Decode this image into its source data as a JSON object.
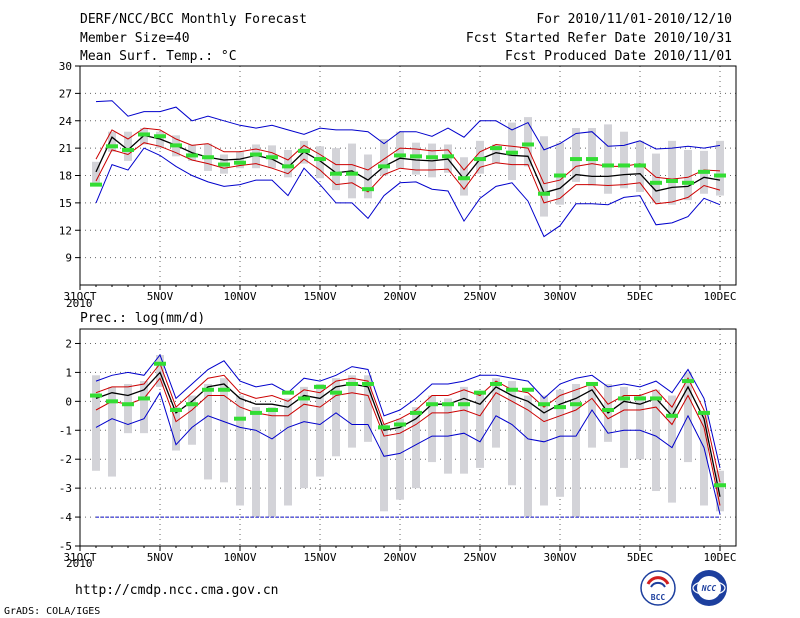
{
  "header": {
    "left1": "DERF/NCC/BCC Monthly Forecast",
    "left2": "Member Size=40",
    "right1": "For 2010/11/01-2010/12/10",
    "right2": "Fcst Started Refer Date 2010/10/31",
    "right3": "Fcst Produced Date 2010/11/01"
  },
  "footer": {
    "url": "http://cmdp.ncc.cma.gov.cn",
    "credit": "GrADS: COLA/IGES"
  },
  "logos": {
    "bcc_text": "BCC",
    "ncc_text": "NCC"
  },
  "colors": {
    "box": "#d3d3d8",
    "mean": "#000000",
    "envelope": "#0000cc",
    "sigma": "#cc0000",
    "obs": "#33dd33"
  },
  "chart_data": [
    {
      "type": "line",
      "title": "Mean Surf. Temp.: °C",
      "x_first_tick": "31OCT",
      "x_year": "2010",
      "xticks": [
        "31OCT",
        "5NOV",
        "10NOV",
        "15NOV",
        "20NOV",
        "25NOV",
        "30NOV",
        "5DEC",
        "10DEC"
      ],
      "ylim": [
        6,
        30
      ],
      "yticks": [
        9,
        12,
        15,
        18,
        21,
        24,
        27,
        30
      ],
      "ytick_labels": [
        "9",
        "12",
        "15",
        "18",
        "21",
        "24",
        "27",
        "30"
      ],
      "x": [
        1,
        2,
        3,
        4,
        5,
        6,
        7,
        8,
        9,
        10,
        11,
        12,
        13,
        14,
        15,
        16,
        17,
        18,
        19,
        20,
        21,
        22,
        23,
        24,
        25,
        26,
        27,
        28,
        29,
        30,
        31,
        32,
        33,
        34,
        35,
        36,
        37,
        38,
        39,
        40
      ],
      "series": [
        {
          "name": "max",
          "values": [
            26.1,
            26.2,
            24.5,
            25.0,
            25.0,
            25.5,
            24.0,
            24.5,
            24.0,
            23.5,
            23.2,
            23.5,
            23.0,
            22.5,
            23.2,
            23.0,
            23.0,
            22.8,
            21.5,
            22.8,
            22.8,
            22.3,
            23.2,
            22.2,
            24.0,
            24.0,
            23.0,
            23.8,
            20.8,
            21.5,
            22.6,
            22.8,
            21.2,
            21.3,
            21.8,
            20.9,
            21.0,
            21.2,
            21.0,
            21.3
          ]
        },
        {
          "name": "plus_sigma",
          "values": [
            19.8,
            23.0,
            22.0,
            23.2,
            23.0,
            22.0,
            21.3,
            21.5,
            20.6,
            20.6,
            20.9,
            20.5,
            19.7,
            21.3,
            20.3,
            19.2,
            19.2,
            18.6,
            19.8,
            21.0,
            20.9,
            20.7,
            20.8,
            18.6,
            20.6,
            21.4,
            21.2,
            21.0,
            17.1,
            17.5,
            19.0,
            19.3,
            19.0,
            19.0,
            19.3,
            17.8,
            17.6,
            17.8,
            18.6,
            18.5
          ]
        },
        {
          "name": "mean",
          "values": [
            18.4,
            22.2,
            20.8,
            22.4,
            22.0,
            21.3,
            20.5,
            20.0,
            19.7,
            19.8,
            20.2,
            19.8,
            18.9,
            20.6,
            19.6,
            18.3,
            18.5,
            17.5,
            19.0,
            19.9,
            19.7,
            19.6,
            19.8,
            17.6,
            19.8,
            20.5,
            20.2,
            20.1,
            16.1,
            16.6,
            18.1,
            17.9,
            17.9,
            18.1,
            18.2,
            16.3,
            16.7,
            16.8,
            17.8,
            17.5
          ]
        },
        {
          "name": "minus_sigma",
          "values": [
            17.4,
            20.8,
            20.3,
            21.6,
            21.2,
            20.5,
            19.7,
            19.3,
            18.8,
            19.1,
            19.3,
            18.8,
            18.2,
            19.8,
            18.6,
            17.0,
            17.2,
            16.2,
            18.1,
            18.8,
            18.6,
            18.6,
            18.7,
            16.5,
            18.9,
            19.4,
            19.2,
            19.2,
            15.0,
            15.5,
            17.0,
            17.0,
            16.9,
            17.0,
            17.2,
            14.9,
            15.1,
            15.6,
            16.9,
            16.4
          ]
        },
        {
          "name": "min",
          "values": [
            15.0,
            19.2,
            18.6,
            21.0,
            20.2,
            19.0,
            18.0,
            17.3,
            16.8,
            17.0,
            17.5,
            17.5,
            15.8,
            18.8,
            17.0,
            15.0,
            15.0,
            13.3,
            15.8,
            17.2,
            17.3,
            16.5,
            16.3,
            13.0,
            15.5,
            16.8,
            17.2,
            15.2,
            11.3,
            12.5,
            14.9,
            14.9,
            14.8,
            15.6,
            15.8,
            12.6,
            12.8,
            13.5,
            15.5,
            14.8
          ]
        },
        {
          "name": "obs",
          "values": [
            17.0,
            21.2,
            20.8,
            22.5,
            22.3,
            21.3,
            20.2,
            20.0,
            19.2,
            19.4,
            20.3,
            20.0,
            19.0,
            20.7,
            19.8,
            18.2,
            18.2,
            16.5,
            19.0,
            20.2,
            20.1,
            20.0,
            20.1,
            17.7,
            19.8,
            21.0,
            20.5,
            21.4,
            16.0,
            18.0,
            19.8,
            19.8,
            19.1,
            19.1,
            19.1,
            17.2,
            17.4,
            17.2,
            18.4,
            18.0
          ]
        }
      ],
      "boxes": [
        [
          17.2,
          19.5
        ],
        [
          20.6,
          22.8
        ],
        [
          19.6,
          22.8
        ],
        [
          21.4,
          23.2
        ],
        [
          21.0,
          22.8
        ],
        [
          20.1,
          22.4
        ],
        [
          19.6,
          21.4
        ],
        [
          18.5,
          21.5
        ],
        [
          18.2,
          20.3
        ],
        [
          18.8,
          20.6
        ],
        [
          18.8,
          21.4
        ],
        [
          18.8,
          21.3
        ],
        [
          17.8,
          20.8
        ],
        [
          19.3,
          21.8
        ],
        [
          17.7,
          21.2
        ],
        [
          16.4,
          21.0
        ],
        [
          15.5,
          21.5
        ],
        [
          15.5,
          20.3
        ],
        [
          18.0,
          22.0
        ],
        [
          18.8,
          22.8
        ],
        [
          18.1,
          21.6
        ],
        [
          17.8,
          21.5
        ],
        [
          18.3,
          21.4
        ],
        [
          15.8,
          20.0
        ],
        [
          18.2,
          21.8
        ],
        [
          19.3,
          21.4
        ],
        [
          17.5,
          23.8
        ],
        [
          19.0,
          24.4
        ],
        [
          13.5,
          22.3
        ],
        [
          14.8,
          21.6
        ],
        [
          17.3,
          23.2
        ],
        [
          16.9,
          23.2
        ],
        [
          16.0,
          23.6
        ],
        [
          16.6,
          22.8
        ],
        [
          16.2,
          21.8
        ],
        [
          15.0,
          20.4
        ],
        [
          14.8,
          21.8
        ],
        [
          15.3,
          20.8
        ],
        [
          16.0,
          20.7
        ],
        [
          15.8,
          21.8
        ]
      ]
    },
    {
      "type": "line",
      "title": "Prec.: log(mm/d)",
      "x_first_tick": "31OCT",
      "x_year": "2010",
      "xticks": [
        "31OCT",
        "5NOV",
        "10NOV",
        "15NOV",
        "20NOV",
        "25NOV",
        "30NOV",
        "5DEC",
        "10DEC"
      ],
      "ylim": [
        -5,
        2.5
      ],
      "yticks": [
        -5,
        -4,
        -3,
        -2,
        -1,
        0,
        1,
        2
      ],
      "ytick_labels": [
        "-5",
        "-4",
        "-3",
        "-2",
        "-1",
        "0",
        "1",
        "2"
      ],
      "x": [
        1,
        2,
        3,
        4,
        5,
        6,
        7,
        8,
        9,
        10,
        11,
        12,
        13,
        14,
        15,
        16,
        17,
        18,
        19,
        20,
        21,
        22,
        23,
        24,
        25,
        26,
        27,
        28,
        29,
        30,
        31,
        32,
        33,
        34,
        35,
        36,
        37,
        38,
        39,
        40
      ],
      "series": [
        {
          "name": "max",
          "values": [
            0.7,
            0.9,
            1.0,
            0.9,
            1.6,
            0.1,
            0.6,
            1.1,
            1.4,
            0.7,
            0.5,
            0.6,
            0.3,
            0.8,
            0.7,
            0.9,
            1.2,
            1.1,
            -0.5,
            -0.3,
            0.1,
            0.6,
            0.6,
            0.7,
            0.9,
            0.9,
            0.8,
            0.7,
            0.1,
            0.6,
            0.8,
            0.9,
            0.5,
            0.6,
            0.5,
            0.7,
            0.3,
            1.1,
            0.1,
            -2.3
          ]
        },
        {
          "name": "plus_sigma",
          "values": [
            0.3,
            0.5,
            0.5,
            0.6,
            1.3,
            -0.2,
            0.3,
            0.8,
            0.9,
            0.3,
            0.1,
            0.2,
            0.0,
            0.4,
            0.3,
            0.7,
            0.8,
            0.7,
            -0.8,
            -0.6,
            -0.3,
            0.2,
            0.2,
            0.4,
            0.2,
            0.7,
            0.4,
            0.3,
            -0.2,
            0.2,
            0.4,
            0.6,
            -0.1,
            0.2,
            0.2,
            0.4,
            -0.2,
            0.8,
            -0.3,
            -2.8
          ]
        },
        {
          "name": "mean",
          "values": [
            0.1,
            0.3,
            0.2,
            0.4,
            1.0,
            -0.4,
            0.0,
            0.5,
            0.6,
            0.1,
            -0.1,
            -0.1,
            -0.2,
            0.2,
            0.1,
            0.5,
            0.6,
            0.5,
            -1.0,
            -0.9,
            -0.6,
            -0.1,
            -0.1,
            0.1,
            -0.1,
            0.5,
            0.2,
            0.0,
            -0.4,
            -0.1,
            0.1,
            0.4,
            -0.4,
            0.0,
            -0.1,
            0.1,
            -0.5,
            0.5,
            -0.6,
            -3.3
          ]
        },
        {
          "name": "minus_sigma",
          "values": [
            -0.3,
            0.0,
            -0.1,
            0.1,
            0.8,
            -0.7,
            -0.3,
            0.2,
            0.2,
            -0.2,
            -0.4,
            -0.5,
            -0.5,
            -0.1,
            -0.2,
            0.2,
            0.3,
            0.2,
            -1.2,
            -1.1,
            -0.8,
            -0.4,
            -0.4,
            -0.3,
            -0.5,
            0.3,
            0.0,
            -0.3,
            -0.7,
            -0.5,
            -0.3,
            0.1,
            -0.6,
            -0.3,
            -0.3,
            -0.2,
            -0.8,
            0.2,
            -0.9,
            -3.6
          ]
        },
        {
          "name": "min",
          "values": [
            -0.9,
            -0.6,
            -0.8,
            -0.6,
            0.3,
            -1.5,
            -0.9,
            -0.5,
            -0.7,
            -0.9,
            -1.0,
            -1.3,
            -0.9,
            -0.7,
            -0.8,
            -0.4,
            -0.8,
            -0.8,
            -1.9,
            -1.8,
            -1.5,
            -1.2,
            -1.2,
            -1.1,
            -1.4,
            -0.5,
            -0.8,
            -1.3,
            -1.4,
            -1.2,
            -1.2,
            -0.3,
            -1.1,
            -1.0,
            -1.0,
            -1.2,
            -1.6,
            -0.5,
            -1.6,
            -3.9
          ]
        },
        {
          "name": "obs",
          "values": [
            0.2,
            0.0,
            -0.1,
            0.1,
            1.3,
            -0.3,
            -0.1,
            0.4,
            0.4,
            -0.6,
            -0.4,
            -0.3,
            0.3,
            0.1,
            0.5,
            0.3,
            0.6,
            0.6,
            -0.9,
            -0.8,
            -0.4,
            -0.1,
            -0.1,
            -0.1,
            0.3,
            0.6,
            0.4,
            0.4,
            -0.1,
            -0.2,
            -0.1,
            0.6,
            -0.3,
            0.1,
            0.1,
            0.1,
            -0.5,
            0.7,
            -0.4,
            -2.9
          ]
        }
      ],
      "boxes": [
        [
          -2.4,
          0.9
        ],
        [
          -2.6,
          0.5
        ],
        [
          -1.1,
          0.6
        ],
        [
          -1.1,
          0.7
        ],
        [
          0.5,
          1.6
        ],
        [
          -1.7,
          -0.2
        ],
        [
          -1.5,
          0.2
        ],
        [
          -2.7,
          0.6
        ],
        [
          -2.8,
          0.8
        ],
        [
          -3.6,
          0.2
        ],
        [
          -4.0,
          -0.2
        ],
        [
          -4.0,
          -0.2
        ],
        [
          -3.6,
          0.1
        ],
        [
          -3.0,
          0.5
        ],
        [
          -2.6,
          0.6
        ],
        [
          -1.9,
          0.8
        ],
        [
          -1.6,
          0.9
        ],
        [
          -1.4,
          0.9
        ],
        [
          -3.8,
          -0.8
        ],
        [
          -3.4,
          -0.6
        ],
        [
          -3.0,
          -0.2
        ],
        [
          -2.1,
          0.2
        ],
        [
          -2.5,
          0.1
        ],
        [
          -2.5,
          0.5
        ],
        [
          -2.3,
          0.3
        ],
        [
          -1.6,
          0.8
        ],
        [
          -2.9,
          0.7
        ],
        [
          -4.0,
          0.2
        ],
        [
          -3.6,
          0.2
        ],
        [
          -3.3,
          0.4
        ],
        [
          -4.0,
          0.6
        ],
        [
          -1.6,
          0.6
        ],
        [
          -1.4,
          0.6
        ],
        [
          -2.3,
          0.5
        ],
        [
          -2.0,
          0.2
        ],
        [
          -3.1,
          0.4
        ],
        [
          -3.5,
          0.2
        ],
        [
          -2.1,
          1.0
        ],
        [
          -3.6,
          -0.4
        ],
        [
          -3.8,
          -2.4
        ]
      ]
    }
  ]
}
